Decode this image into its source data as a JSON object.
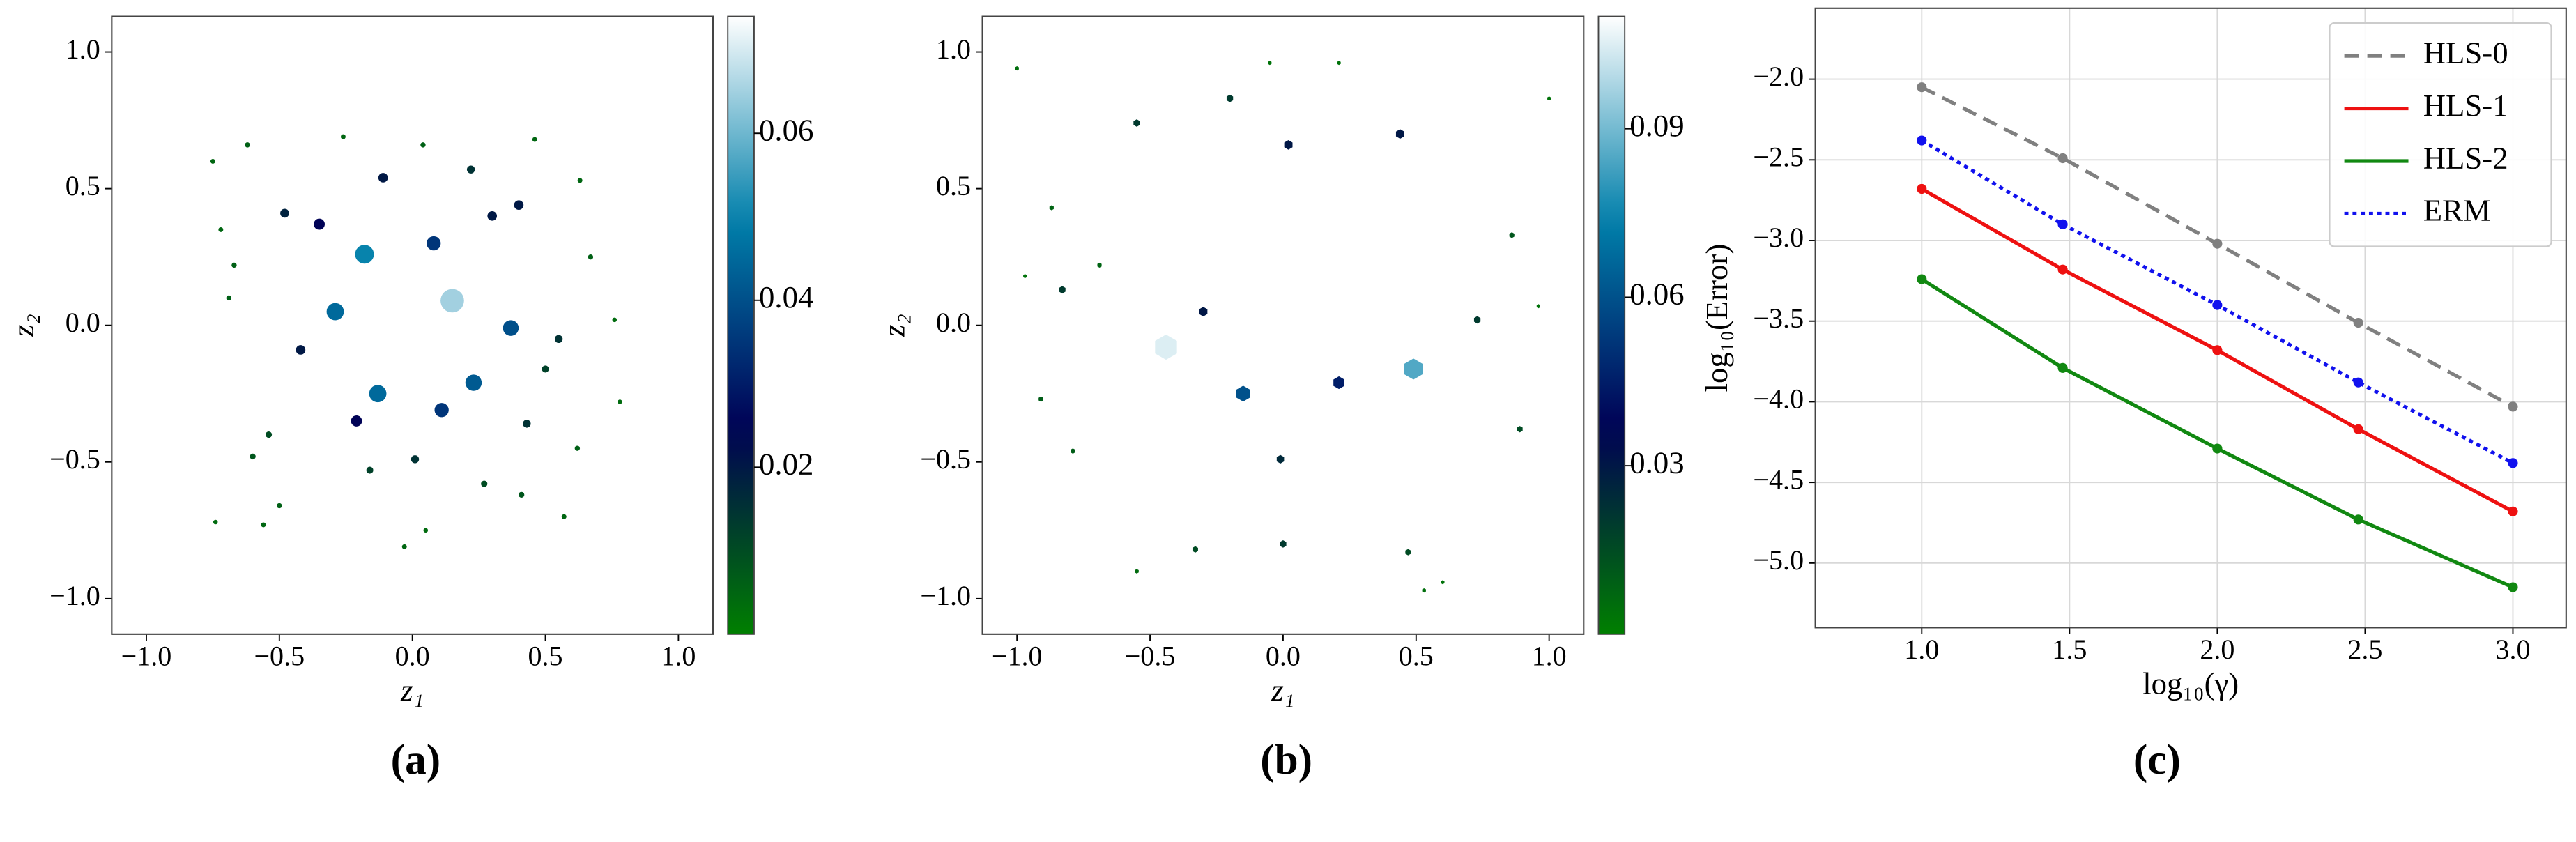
{
  "chart_data": [
    {
      "type": "scatter",
      "caption": "(a)",
      "xlabel": "z₁",
      "ylabel": "z₂",
      "marker": "circle",
      "colormap": "ocean",
      "xlim": [
        -1.13,
        1.13
      ],
      "ylim": [
        -1.13,
        1.13
      ],
      "xticks": [
        {
          "value": -1,
          "label": "−1.0"
        },
        {
          "value": -0.5,
          "label": "−0.5"
        },
        {
          "value": 0,
          "label": "0.0"
        },
        {
          "value": 0.5,
          "label": "0.5"
        },
        {
          "value": 1,
          "label": "1.0"
        }
      ],
      "yticks": [
        {
          "value": -1,
          "label": "−1.0"
        },
        {
          "value": -0.5,
          "label": "−0.5"
        },
        {
          "value": 0,
          "label": "0.0"
        },
        {
          "value": 0.5,
          "label": "0.5"
        },
        {
          "value": 1,
          "label": "1.0"
        }
      ],
      "clim": [
        0,
        0.074
      ],
      "cticks": [
        0.02,
        0.04,
        0.06
      ],
      "x": [
        0.15,
        -0.18,
        0.08,
        -0.35,
        -0.11,
        0.22,
        0.3,
        0.4,
        -0.48,
        -0.29,
        0.37,
        0.23,
        -0.13,
        0.11,
        -0.21,
        -0.42,
        0.55,
        0.5,
        0.43,
        0.01,
        -0.16,
        0.27,
        -0.54,
        -0.6,
        0.41,
        -0.5,
        -0.56,
        -0.74,
        0.57,
        0.62,
        0.67,
        0.63,
        0.46,
        -0.62,
        -0.75,
        -0.67,
        -0.69,
        -0.72,
        0.04,
        -0.26,
        -0.03,
        0.05,
        0.78,
        0.76
      ],
      "y": [
        0.09,
        0.26,
        0.3,
        0.37,
        0.54,
        0.57,
        0.4,
        0.44,
        0.41,
        0.05,
        -0.01,
        -0.21,
        -0.25,
        -0.31,
        -0.35,
        -0.09,
        -0.05,
        -0.16,
        -0.36,
        -0.49,
        -0.53,
        -0.58,
        -0.4,
        -0.48,
        -0.62,
        -0.66,
        -0.73,
        -0.72,
        -0.7,
        -0.45,
        0.25,
        0.53,
        0.68,
        0.66,
        0.6,
        0.22,
        0.1,
        0.35,
        0.66,
        0.69,
        -0.81,
        -0.75,
        -0.28,
        0.02
      ],
      "values": [
        0.065,
        0.05,
        0.035,
        0.025,
        0.02,
        0.015,
        0.02,
        0.02,
        0.018,
        0.045,
        0.04,
        0.042,
        0.045,
        0.035,
        0.025,
        0.02,
        0.015,
        0.012,
        0.015,
        0.015,
        0.012,
        0.01,
        0.01,
        0.008,
        0.008,
        0.006,
        0.005,
        0.004,
        0.005,
        0.006,
        0.006,
        0.005,
        0.005,
        0.006,
        0.005,
        0.006,
        0.006,
        0.005,
        0.006,
        0.005,
        0.005,
        0.004,
        0.004,
        0.004
      ]
    },
    {
      "type": "scatter",
      "caption": "(b)",
      "xlabel": "z₁",
      "ylabel": "z₂",
      "marker": "hexagon",
      "colormap": "ocean",
      "xlim": [
        -1.13,
        1.13
      ],
      "ylim": [
        -1.13,
        1.13
      ],
      "xticks": [
        {
          "value": -1,
          "label": "−1.0"
        },
        {
          "value": -0.5,
          "label": "−0.5"
        },
        {
          "value": 0,
          "label": "0.0"
        },
        {
          "value": 0.5,
          "label": "0.5"
        },
        {
          "value": 1,
          "label": "1.0"
        }
      ],
      "yticks": [
        {
          "value": -1,
          "label": "−1.0"
        },
        {
          "value": -0.5,
          "label": "−0.5"
        },
        {
          "value": 0,
          "label": "0.0"
        },
        {
          "value": 0.5,
          "label": "0.5"
        },
        {
          "value": 1,
          "label": "1.0"
        }
      ],
      "clim": [
        0,
        0.11
      ],
      "cticks": [
        0.03,
        0.06,
        0.09
      ],
      "x": [
        -0.44,
        0.49,
        -0.15,
        0.21,
        0.02,
        0.44,
        -0.3,
        -0.01,
        -0.2,
        -0.55,
        -0.83,
        0.73,
        0,
        -0.33,
        0.47,
        0.89,
        0.86,
        -0.91,
        -0.79,
        -0.87,
        -0.69,
        -0.55,
        0.53,
        0.6,
        -1,
        1,
        0.96,
        -0.97,
        -0.05,
        0.21
      ],
      "y": [
        -0.08,
        -0.16,
        -0.25,
        -0.21,
        0.66,
        0.7,
        0.05,
        -0.49,
        0.83,
        0.74,
        0.13,
        0.02,
        -0.8,
        -0.82,
        -0.83,
        -0.38,
        0.33,
        -0.27,
        -0.46,
        0.43,
        0.22,
        -0.9,
        -0.97,
        -0.94,
        0.94,
        0.83,
        0.07,
        0.18,
        0.96,
        0.96
      ],
      "values": [
        0.105,
        0.085,
        0.06,
        0.045,
        0.03,
        0.03,
        0.03,
        0.025,
        0.02,
        0.02,
        0.02,
        0.02,
        0.02,
        0.015,
        0.015,
        0.015,
        0.012,
        0.01,
        0.01,
        0.008,
        0.008,
        0.006,
        0.005,
        0.004,
        0.005,
        0.004,
        0.004,
        0.004,
        0.004,
        0.004
      ]
    },
    {
      "type": "line",
      "caption": "(c)",
      "xlabel": "log₁₀(γ)",
      "ylabel": "log₁₀(Error)",
      "grid": true,
      "legend": "upper right",
      "xlim": [
        0.64,
        3.18
      ],
      "ylim": [
        -5.4,
        -1.56
      ],
      "xticks": [
        {
          "value": 1,
          "label": "1.0"
        },
        {
          "value": 1.5,
          "label": "1.5"
        },
        {
          "value": 2,
          "label": "2.0"
        },
        {
          "value": 2.5,
          "label": "2.5"
        },
        {
          "value": 3,
          "label": "3.0"
        }
      ],
      "yticks": [
        {
          "value": -2,
          "label": "−2.0"
        },
        {
          "value": -2.5,
          "label": "−2.5"
        },
        {
          "value": -3,
          "label": "−3.0"
        },
        {
          "value": -3.5,
          "label": "−3.5"
        },
        {
          "value": -4,
          "label": "−4.0"
        },
        {
          "value": -4.5,
          "label": "−4.5"
        },
        {
          "value": -5,
          "label": "−5.0"
        }
      ],
      "x": [
        1,
        1.477,
        2,
        2.477,
        3
      ],
      "series": [
        {
          "name": "HLS-0",
          "color": "#808080",
          "dash": "dashed",
          "values": [
            -2.05,
            -2.49,
            -3.02,
            -3.51,
            -4.03
          ]
        },
        {
          "name": "HLS-1",
          "color": "#ee1111",
          "dash": "solid",
          "values": [
            -2.68,
            -3.18,
            -3.68,
            -4.17,
            -4.68
          ]
        },
        {
          "name": "HLS-2",
          "color": "#118811",
          "dash": "solid",
          "values": [
            -3.24,
            -3.79,
            -4.29,
            -4.73,
            -5.15
          ]
        },
        {
          "name": "ERM",
          "color": "#1111ee",
          "dash": "dotted",
          "values": [
            -2.38,
            -2.9,
            -3.4,
            -3.88,
            -4.38
          ]
        }
      ]
    }
  ]
}
